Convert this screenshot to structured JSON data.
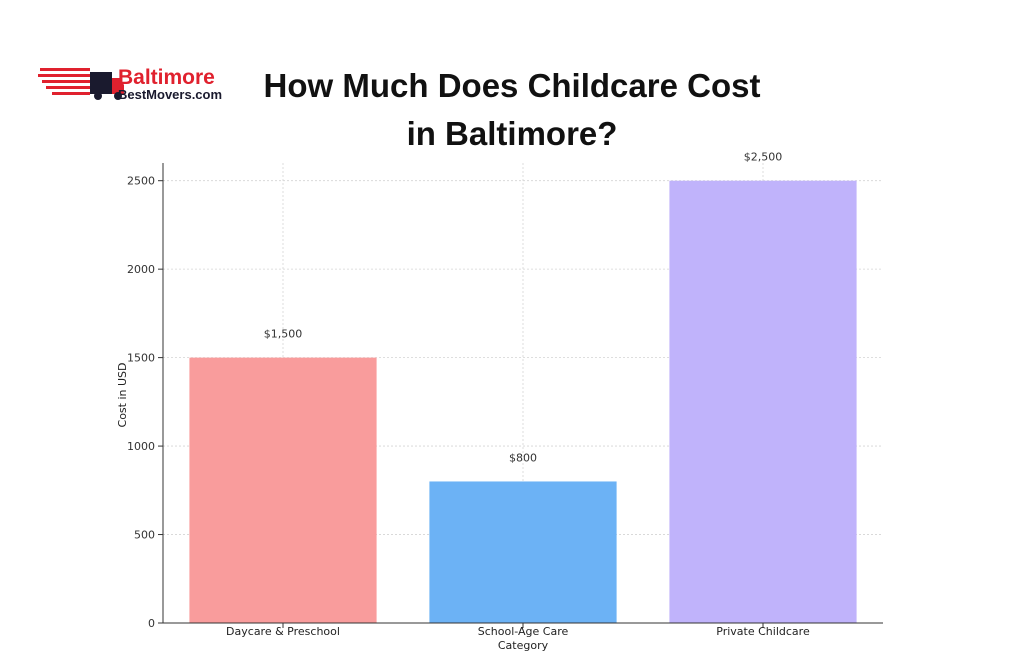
{
  "logo": {
    "line1": "Baltimore",
    "line2": "BestMovers.com",
    "icon": "moving-truck-icon",
    "color_primary": "#e0212e",
    "color_dark": "#1a1a2e"
  },
  "title": {
    "line1": "How Much Does Childcare Cost",
    "line2": "in Baltimore?"
  },
  "chart_data": {
    "type": "bar",
    "title": "How Much Does Childcare Cost in Baltimore?",
    "xlabel": "Category",
    "ylabel": "Cost in USD",
    "categories": [
      "Daycare & Preschool",
      "School-Age Care",
      "Private Childcare"
    ],
    "values": [
      1500,
      800,
      2500
    ],
    "value_labels": [
      "$1,500",
      "$800",
      "$2,500"
    ],
    "colors": [
      "#f99c9c",
      "#6cb2f5",
      "#c0b3fb"
    ],
    "ylim": [
      0,
      2600
    ],
    "yticks": [
      0,
      500,
      1000,
      1500,
      2000,
      2500
    ],
    "grid": true
  }
}
